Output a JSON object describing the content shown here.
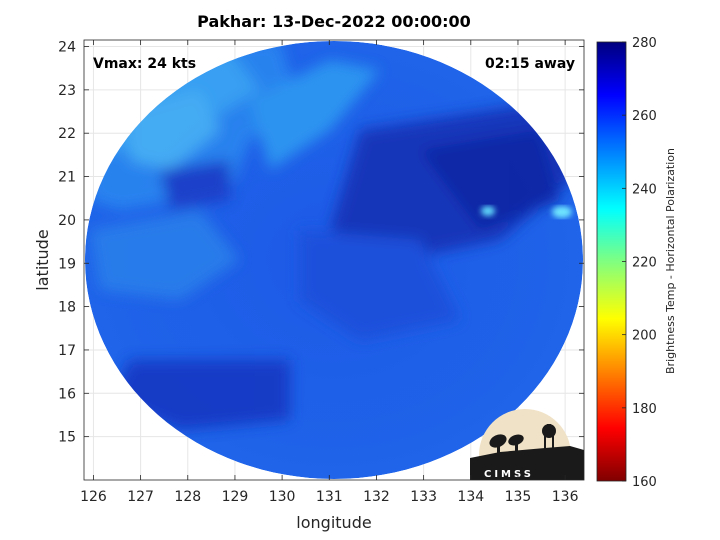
{
  "title": "Pakhar: 13-Dec-2022 00:00:00",
  "annotations": {
    "vmax": "Vmax: 24 kts",
    "time_away": "02:15 away"
  },
  "logo": {
    "text": "CIMSS"
  },
  "map": {
    "xlabel": "longitude",
    "ylabel": "latitude",
    "xlim": [
      125.8,
      136.4
    ],
    "ylim": [
      14.0,
      24.15
    ],
    "xticks": [
      126,
      127,
      128,
      129,
      130,
      131,
      132,
      133,
      134,
      135,
      136
    ],
    "yticks": [
      15,
      16,
      17,
      18,
      19,
      20,
      21,
      22,
      23,
      24
    ],
    "grid": true,
    "swath": {
      "shape": "circle",
      "center_lon": 131.3,
      "center_lat": 19.1,
      "field": "brightness temperature"
    }
  },
  "colorbar": {
    "label": "Brightness Temp - Horizontal Polarization",
    "range": [
      160,
      280
    ],
    "ticks": [
      160,
      180,
      200,
      220,
      240,
      260,
      280
    ],
    "colormap": "jet"
  },
  "colors": {
    "swath_base": "#1f5fe8",
    "swath_dark": "#1230b8",
    "swath_light": "#2a8ff0",
    "cyan": "#3fe0ff"
  }
}
